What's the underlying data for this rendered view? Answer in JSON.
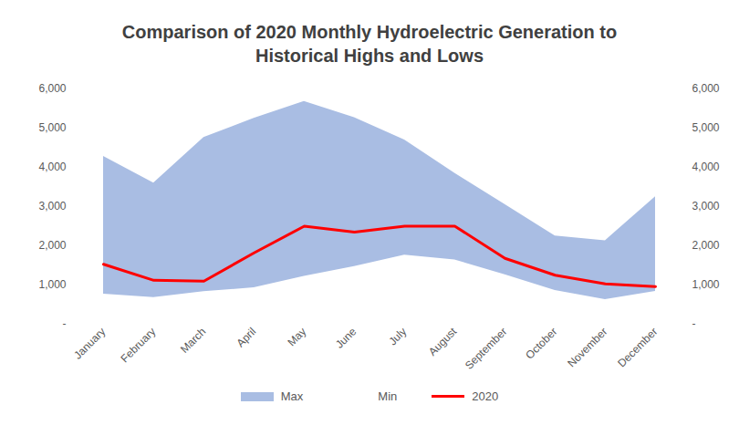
{
  "chart_data": {
    "type": "area",
    "title": "Comparison of 2020 Monthly Hydroelectric Generation to Historical Highs and Lows",
    "categories": [
      "January",
      "February",
      "March",
      "April",
      "May",
      "June",
      "July",
      "August",
      "September",
      "October",
      "November",
      "December"
    ],
    "series": [
      {
        "name": "Max",
        "type": "area",
        "color": "#a9bde3",
        "values": [
          4280,
          3600,
          4760,
          5250,
          5680,
          5270,
          4700,
          3850,
          3050,
          2250,
          2130,
          3250
        ]
      },
      {
        "name": "Min",
        "type": "area",
        "color": "#ffffff",
        "values": [
          770,
          680,
          830,
          930,
          1220,
          1470,
          1760,
          1640,
          1260,
          860,
          630,
          840
        ]
      },
      {
        "name": "2020",
        "type": "line",
        "color": "#ff0000",
        "values": [
          1530,
          1120,
          1100,
          1820,
          2500,
          2350,
          2500,
          2500,
          1680,
          1250,
          1030,
          960
        ]
      }
    ],
    "ylim": [
      0,
      6000
    ],
    "yticks": [
      {
        "value": 0,
        "label": "-"
      },
      {
        "value": 1000,
        "label": "1,000"
      },
      {
        "value": 2000,
        "label": "2,000"
      },
      {
        "value": 3000,
        "label": "3,000"
      },
      {
        "value": 4000,
        "label": "4,000"
      },
      {
        "value": 5000,
        "label": "5,000"
      },
      {
        "value": 6000,
        "label": "6,000"
      }
    ],
    "grid": false,
    "legend": "bottom"
  }
}
